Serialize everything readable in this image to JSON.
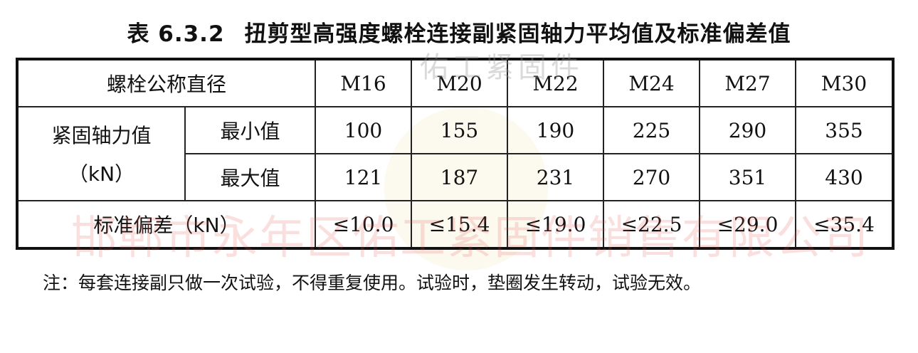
{
  "title": {
    "number": "表 6.3.2",
    "text": "扭剪型高强度螺栓连接副紧固轴力平均值及标准偏差值"
  },
  "table": {
    "header_label": "螺栓公称直径",
    "diameters": [
      "M16",
      "M20",
      "M22",
      "M24",
      "M27",
      "M30"
    ],
    "force_label": "紧固轴力值",
    "force_unit": "（kN）",
    "min_label": "最小值",
    "min_values": [
      "100",
      "155",
      "190",
      "225",
      "290",
      "355"
    ],
    "max_label": "最大值",
    "max_values": [
      "121",
      "187",
      "231",
      "270",
      "351",
      "430"
    ],
    "std_label": "标准偏差（kN）",
    "std_values": [
      "≤10.0",
      "≤15.4",
      "≤19.0",
      "≤22.5",
      "≤29.0",
      "≤35.4"
    ]
  },
  "note": "注：每套连接副只做一次试验，不得重复使用。试验时，垫圈发生转动，试验无效。",
  "watermarks": {
    "top": "佑工紧固件",
    "company": "邯郸市永年区佑工紧固件销售有限公司"
  }
}
